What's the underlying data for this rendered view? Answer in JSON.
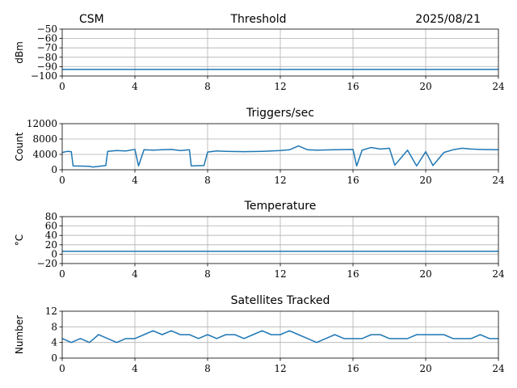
{
  "header": {
    "left": "CSM",
    "center": "Threshold",
    "right": "2025/08/21"
  },
  "chart_data": [
    {
      "type": "line",
      "title": "Threshold",
      "xlabel": "",
      "ylabel": "dBm",
      "xlim": [
        0,
        24
      ],
      "ylim": [
        -100,
        -50
      ],
      "xticks": [
        0,
        4,
        8,
        12,
        16,
        20,
        24
      ],
      "yticks": [
        -100,
        -90,
        -80,
        -70,
        -60,
        -50
      ],
      "ytick_labels": [
        "−100",
        "−90",
        "−80",
        "−70",
        "−60",
        "−50"
      ],
      "grid": true,
      "color": "#1f77b4",
      "series": [
        {
          "x": [
            0,
            2,
            4,
            6,
            8,
            10,
            12,
            14,
            16,
            18,
            20,
            22,
            24
          ],
          "y": [
            -93,
            -93,
            -93,
            -93,
            -93,
            -93,
            -93,
            -93,
            -93,
            -93,
            -93,
            -93,
            -93
          ]
        }
      ]
    },
    {
      "type": "line",
      "title": "Triggers/sec",
      "xlabel": "",
      "ylabel": "Count",
      "xlim": [
        0,
        24
      ],
      "ylim": [
        0,
        12000
      ],
      "xticks": [
        0,
        4,
        8,
        12,
        16,
        20,
        24
      ],
      "yticks": [
        0,
        4000,
        8000,
        12000
      ],
      "ytick_labels": [
        "0",
        "4000",
        "8000",
        "12000"
      ],
      "grid": true,
      "color": "#1f77b4",
      "series": [
        {
          "x": [
            0,
            0.3,
            0.5,
            0.6,
            1.5,
            1.7,
            2.4,
            2.5,
            3.0,
            3.5,
            4.0,
            4.2,
            4.5,
            5.0,
            5.5,
            6.0,
            6.5,
            7.0,
            7.1,
            7.8,
            8.0,
            8.5,
            9.0,
            10.0,
            11.0,
            12.0,
            12.5,
            13.0,
            13.5,
            14.0,
            15.0,
            16.0,
            16.2,
            16.5,
            17.0,
            17.5,
            18.0,
            18.3,
            19.0,
            19.5,
            20.0,
            20.4,
            21.0,
            21.5,
            22.0,
            22.5,
            23.0,
            24.0
          ],
          "y": [
            4500,
            4800,
            4700,
            1000,
            900,
            700,
            1100,
            4800,
            5000,
            4900,
            5300,
            1000,
            5200,
            5100,
            5200,
            5300,
            5000,
            5200,
            1000,
            1100,
            4600,
            4900,
            4800,
            4700,
            4800,
            5000,
            5200,
            6200,
            5200,
            5100,
            5200,
            5300,
            1000,
            5100,
            5800,
            5400,
            5600,
            1200,
            5100,
            1000,
            4700,
            1100,
            4500,
            5200,
            5600,
            5400,
            5300,
            5200
          ]
        }
      ]
    },
    {
      "type": "line",
      "title": "Temperature",
      "xlabel": "",
      "ylabel": "°C",
      "xlim": [
        0,
        24
      ],
      "ylim": [
        -20,
        80
      ],
      "xticks": [
        0,
        4,
        8,
        12,
        16,
        20,
        24
      ],
      "yticks": [
        -20,
        0,
        20,
        40,
        60,
        80
      ],
      "ytick_labels": [
        "−20",
        "0",
        "20",
        "40",
        "60",
        "80"
      ],
      "grid": true,
      "color": "#1f77b4",
      "series": [
        {
          "x": [
            0,
            4,
            8,
            12,
            16,
            20,
            24
          ],
          "y": [
            6,
            6,
            6,
            6,
            6,
            6,
            6
          ]
        }
      ]
    },
    {
      "type": "line",
      "title": "Satellites Tracked",
      "xlabel": "",
      "ylabel": "Number",
      "xlim": [
        0,
        24
      ],
      "ylim": [
        0,
        12
      ],
      "xticks": [
        0,
        4,
        8,
        12,
        16,
        20,
        24
      ],
      "yticks": [
        0,
        4,
        8,
        12
      ],
      "ytick_labels": [
        "0",
        "4",
        "8",
        "12"
      ],
      "grid": true,
      "color": "#1f77b4",
      "series": [
        {
          "x": [
            0,
            0.5,
            1,
            1.5,
            2,
            2.5,
            3,
            3.5,
            4,
            4.5,
            5,
            5.5,
            6,
            6.5,
            7,
            7.5,
            8,
            8.5,
            9,
            9.5,
            10,
            10.5,
            11,
            11.5,
            12,
            12.5,
            13,
            13.5,
            14,
            14.5,
            15,
            15.5,
            16,
            16.5,
            17,
            17.5,
            18,
            18.5,
            19,
            19.5,
            20,
            20.5,
            21,
            21.5,
            22,
            22.5,
            23,
            23.5,
            24
          ],
          "y": [
            5,
            4,
            5,
            4,
            6,
            5,
            4,
            5,
            5,
            6,
            7,
            6,
            7,
            6,
            6,
            5,
            6,
            5,
            6,
            6,
            5,
            6,
            7,
            6,
            6,
            7,
            6,
            5,
            4,
            5,
            6,
            5,
            5,
            5,
            6,
            6,
            5,
            5,
            5,
            6,
            6,
            6,
            6,
            5,
            5,
            5,
            6,
            5,
            5
          ]
        }
      ]
    }
  ]
}
